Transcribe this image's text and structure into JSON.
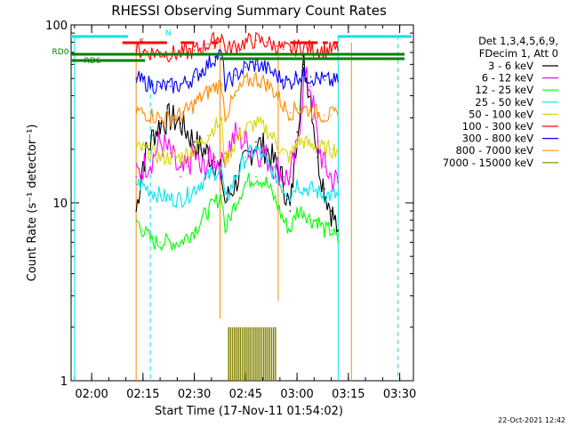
{
  "chart_data": {
    "type": "line",
    "title": "RHESSI Observing Summary Count Rates",
    "xlabel": "Start Time (17-Nov-11 01:54:02)",
    "ylabel": "Count Rate (s⁻¹ detector⁻¹)",
    "yscale": "log",
    "ylim": [
      1,
      100
    ],
    "xlim_minutes": [
      -6,
      94
    ],
    "x_ticks": [
      {
        "label": "02:00",
        "minutes": 0
      },
      {
        "label": "02:15",
        "minutes": 15
      },
      {
        "label": "02:30",
        "minutes": 30
      },
      {
        "label": "02:45",
        "minutes": 45
      },
      {
        "label": "03:00",
        "minutes": 60
      },
      {
        "label": "03:15",
        "minutes": 75
      },
      {
        "label": "03:30",
        "minutes": 90
      }
    ],
    "y_ticks": [
      {
        "label": "1",
        "value": 1
      },
      {
        "label": "10",
        "value": 10
      },
      {
        "label": "100",
        "value": 100
      }
    ],
    "legend_header": [
      "Det 1,3,4,5,6,9,",
      "FDecim 1, Att 0"
    ],
    "legend_placement": "right",
    "timestamp": "22-Oct-2021 12:42",
    "flags": [
      {
        "label": "N",
        "color": "#00e5ee"
      },
      {
        "label": "F",
        "color": "#ff0000"
      },
      {
        "label": "RD0",
        "color": "#008000"
      },
      {
        "label": "RD6",
        "color": "#008000"
      }
    ],
    "eclipse_start_minutes": 13,
    "eclipse_end_minutes": 72,
    "series": [
      {
        "name": "3 - 6 keV",
        "color": "#000000",
        "x": [
          13,
          15,
          18,
          20,
          23,
          26,
          28,
          30,
          32,
          34,
          36,
          38,
          39,
          42,
          45,
          48,
          51,
          54,
          56,
          58,
          60,
          62,
          64,
          66,
          68,
          70,
          72
        ],
        "y": [
          9,
          17,
          24,
          28,
          30,
          28,
          25,
          22,
          20,
          19,
          17,
          14,
          10,
          13,
          17,
          22,
          20,
          16,
          13,
          9,
          25,
          60,
          40,
          18,
          12,
          9,
          7
        ]
      },
      {
        "name": "6 - 12 keV",
        "color": "#ff00ff",
        "x": [
          13,
          15,
          18,
          20,
          23,
          26,
          28,
          30,
          32,
          34,
          36,
          38,
          39,
          42,
          45,
          48,
          51,
          54,
          56,
          58,
          60,
          62,
          64,
          66,
          68,
          70,
          72
        ],
        "y": [
          14,
          16,
          18,
          22,
          19,
          14,
          16,
          19,
          15,
          17,
          18,
          16,
          19,
          24,
          22,
          20,
          18,
          16,
          14,
          14,
          20,
          50,
          45,
          22,
          16,
          14,
          13
        ]
      },
      {
        "name": "12 - 25 keV",
        "color": "#00ff00",
        "x": [
          13,
          15,
          18,
          20,
          23,
          26,
          28,
          30,
          32,
          34,
          36,
          38,
          39,
          42,
          45,
          48,
          51,
          54,
          56,
          58,
          60,
          62,
          64,
          66,
          68,
          70,
          72
        ],
        "y": [
          8,
          7,
          6,
          6,
          6,
          6,
          6.5,
          7,
          8,
          9,
          10,
          11,
          7,
          10,
          13,
          14,
          13,
          10,
          8,
          7,
          9,
          9,
          8,
          8,
          7,
          7,
          6
        ]
      },
      {
        "name": "25 - 50 keV",
        "color": "#00e5ee",
        "x": [
          13,
          15,
          18,
          20,
          23,
          26,
          28,
          30,
          32,
          34,
          36,
          38,
          39,
          42,
          45,
          48,
          51,
          54,
          56,
          58,
          60,
          62,
          64,
          66,
          68,
          70,
          72
        ],
        "y": [
          13,
          12.5,
          11.5,
          11,
          10.5,
          10.5,
          11,
          12,
          13,
          14,
          15,
          15,
          10,
          14,
          18,
          20,
          17,
          14,
          12,
          11,
          13,
          12,
          12,
          11.5,
          11,
          11,
          11
        ]
      },
      {
        "name": "50 - 100 keV",
        "color": "#d7d700",
        "x": [
          13,
          15,
          18,
          20,
          23,
          26,
          28,
          30,
          32,
          34,
          36,
          38,
          39,
          42,
          45,
          48,
          51,
          54,
          56,
          58,
          60,
          62,
          64,
          66,
          68,
          70,
          72
        ],
        "y": [
          20,
          20,
          19,
          18,
          18,
          18,
          19,
          20,
          22,
          24,
          27,
          28,
          17,
          22,
          26,
          28,
          26,
          22,
          19,
          18,
          22,
          22,
          21,
          21,
          20,
          20,
          20
        ]
      },
      {
        "name": "100 - 300 keV",
        "color": "#ff0000",
        "x": [
          13,
          15,
          18,
          20,
          23,
          26,
          28,
          30,
          32,
          34,
          36,
          38,
          39,
          42,
          45,
          48,
          51,
          54,
          56,
          58,
          60,
          62,
          64,
          66,
          68,
          70,
          72
        ],
        "y": [
          72,
          71,
          70,
          70,
          69,
          69,
          70,
          72,
          74,
          78,
          82,
          88,
          72,
          76,
          80,
          82,
          80,
          76,
          73,
          72,
          75,
          75,
          74,
          73,
          72,
          72,
          72
        ]
      },
      {
        "name": "300 - 800 keV",
        "color": "#0000ff",
        "x": [
          13,
          15,
          18,
          20,
          23,
          26,
          28,
          30,
          32,
          34,
          36,
          38,
          39,
          42,
          45,
          48,
          51,
          54,
          56,
          58,
          60,
          62,
          64,
          66,
          68,
          70,
          72
        ],
        "y": [
          50,
          48,
          46,
          45,
          45,
          46,
          48,
          51,
          55,
          60,
          66,
          68,
          46,
          52,
          58,
          60,
          57,
          52,
          49,
          47,
          52,
          52,
          51,
          50,
          49,
          48,
          48
        ]
      },
      {
        "name": "800 - 7000 keV",
        "color": "#ff8c00",
        "x": [
          13,
          15,
          18,
          20,
          23,
          26,
          28,
          30,
          32,
          34,
          36,
          38,
          39,
          42,
          45,
          48,
          51,
          54,
          56,
          58,
          60,
          62,
          64,
          66,
          68,
          70,
          72
        ],
        "y": [
          33,
          32,
          31,
          30,
          30,
          31,
          33,
          36,
          39,
          42,
          45,
          46,
          31,
          40,
          48,
          50,
          47,
          41,
          35,
          32,
          34,
          34,
          33,
          32,
          31,
          31,
          31
        ]
      },
      {
        "name": "7000 - 15000 keV",
        "color": "#808000",
        "x": [
          40,
          42,
          44,
          46,
          48,
          50,
          52,
          54
        ],
        "y": [
          2,
          2,
          2,
          2,
          2,
          2,
          2,
          2
        ]
      }
    ]
  }
}
